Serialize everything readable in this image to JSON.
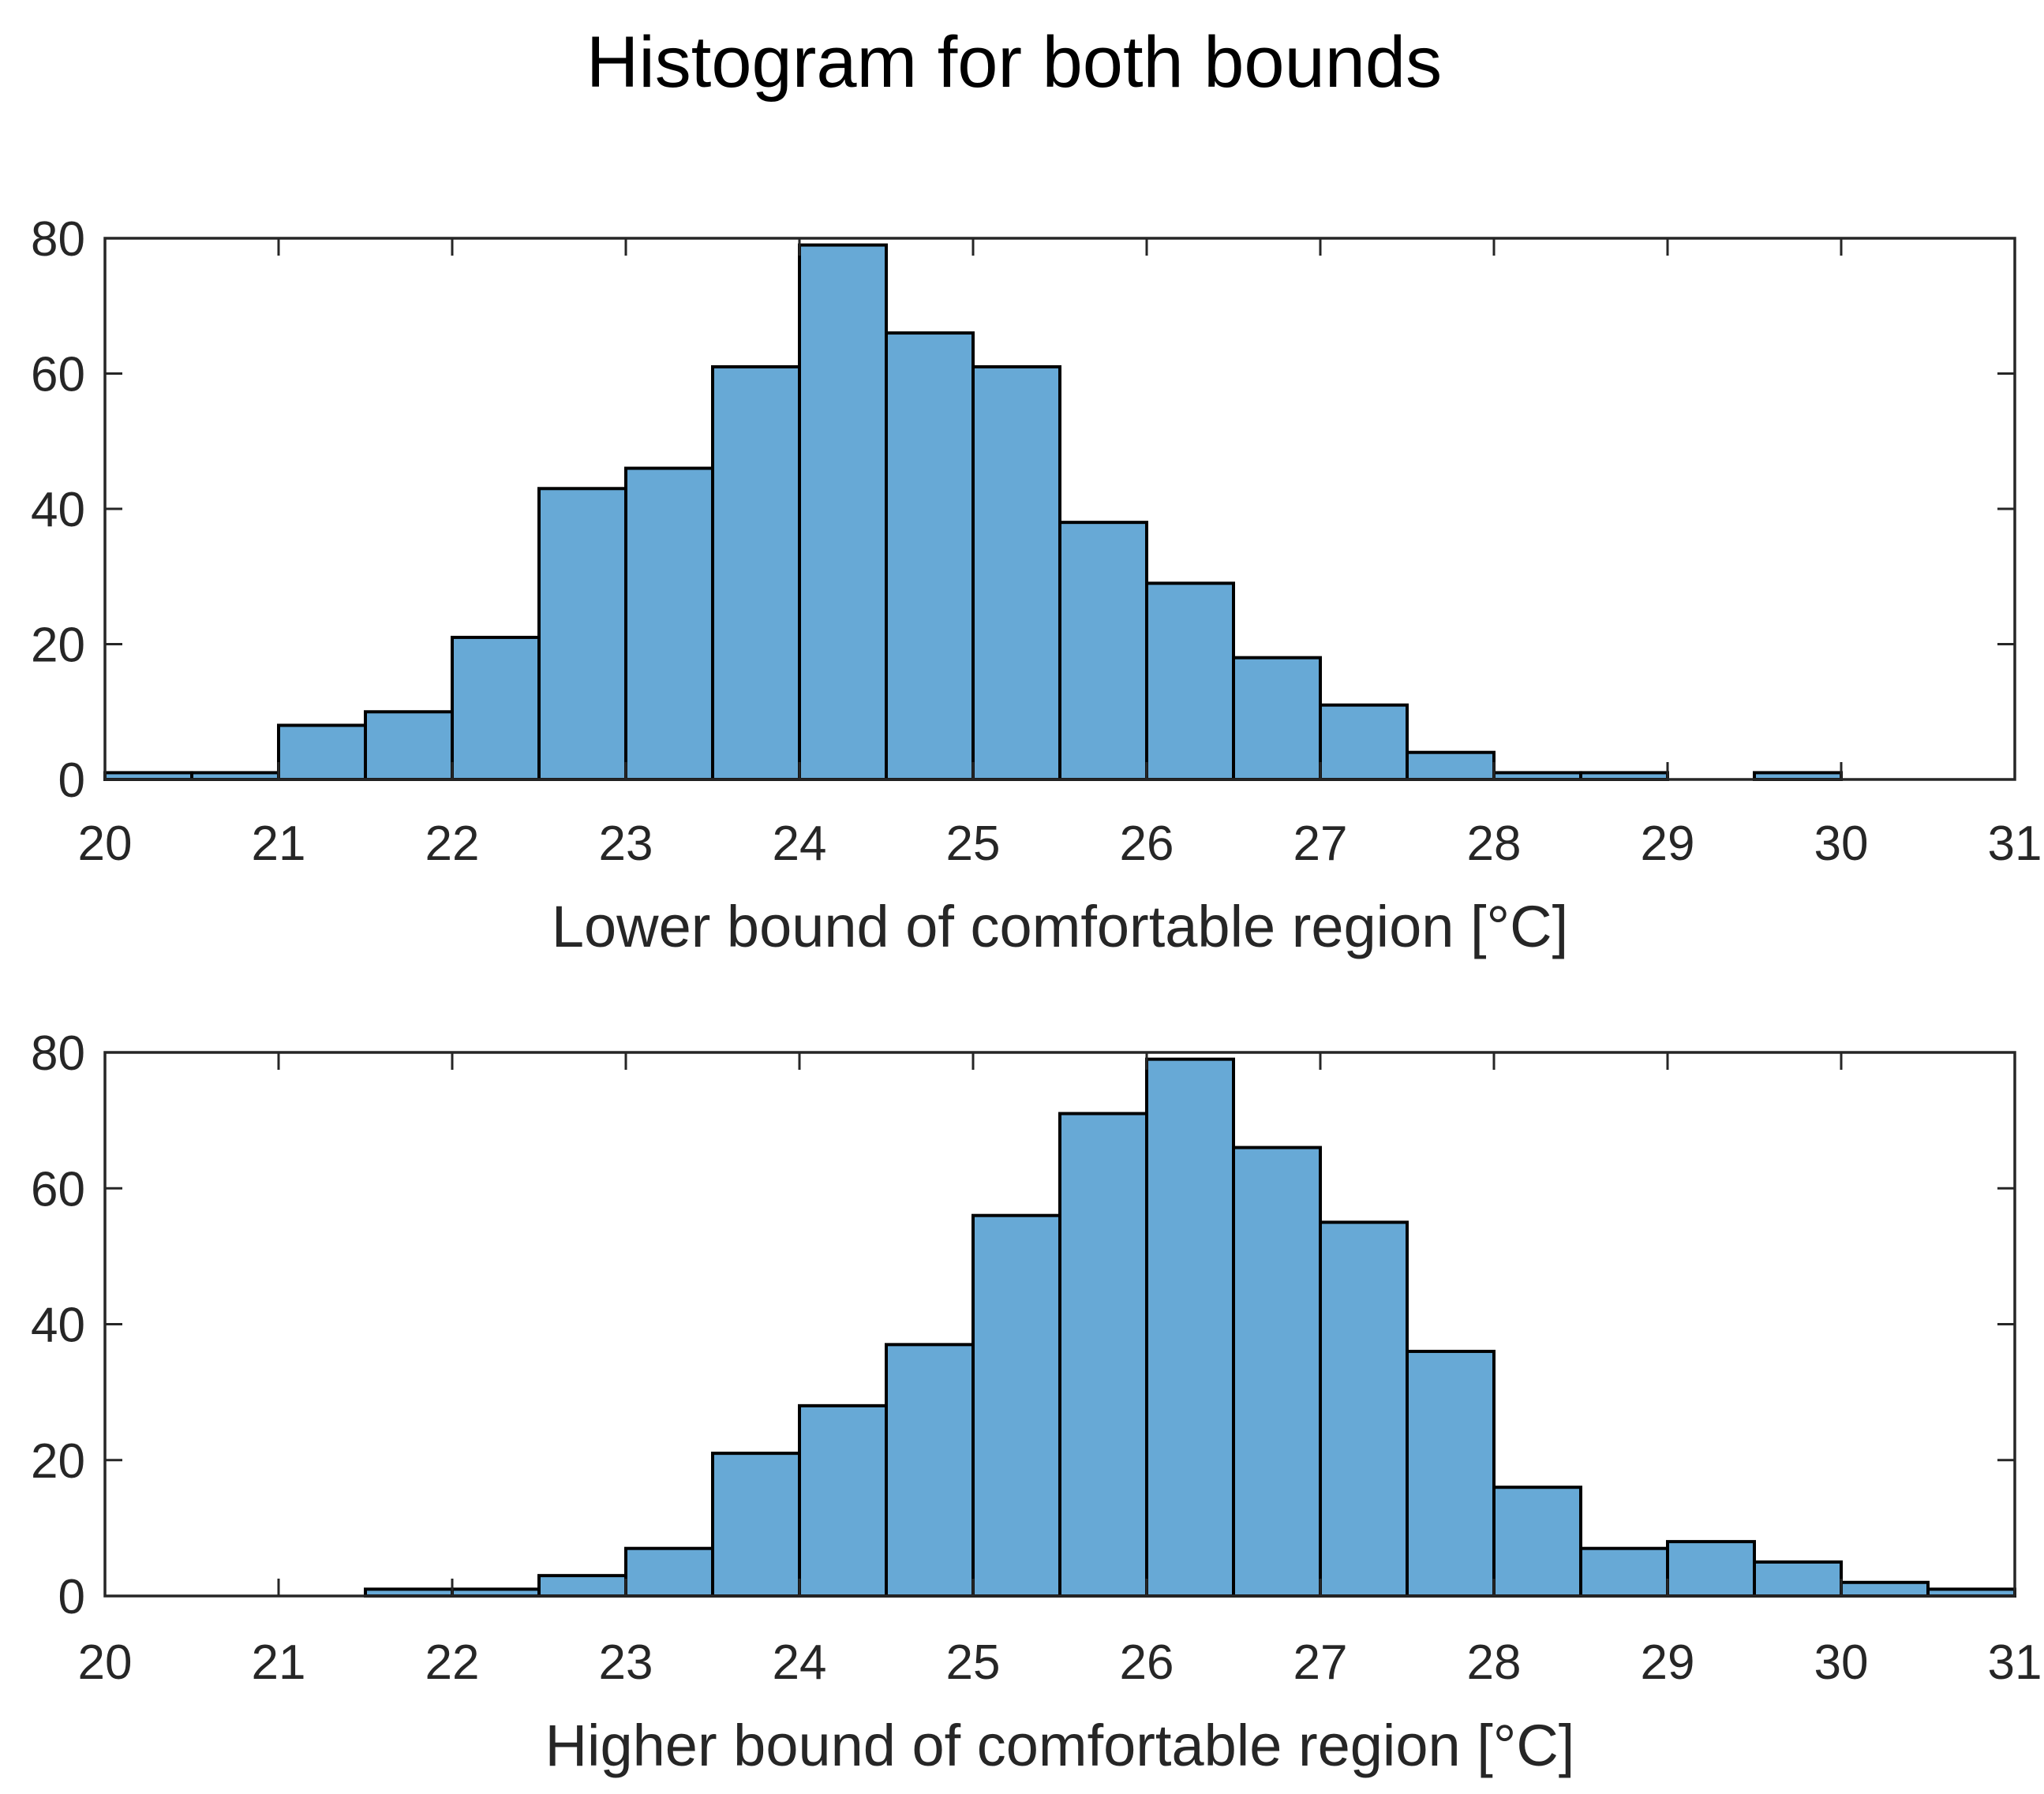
{
  "title": "Histogram for both bounds",
  "colors": {
    "bar_fill": "#67a9d6",
    "bar_edge": "#000000",
    "axis": "#262626",
    "text": "#262626",
    "background": "#ffffff"
  },
  "chart_data": [
    {
      "type": "bar",
      "subtype": "histogram",
      "bin_edges": [
        20,
        20.5,
        21,
        21.5,
        22,
        22.5,
        23,
        23.5,
        24,
        24.5,
        25,
        25.5,
        26,
        26.5,
        27,
        27.5,
        28,
        28.5,
        29,
        29.5,
        30,
        30.5,
        31
      ],
      "values": [
        1,
        1,
        8,
        10,
        21,
        43,
        46,
        61,
        79,
        66,
        61,
        38,
        29,
        18,
        11,
        4,
        1,
        1,
        0,
        1,
        0,
        0
      ],
      "xlabel": "Lower bound of comfortable region [°C]",
      "ylabel": "",
      "xlim": [
        20,
        31
      ],
      "ylim": [
        0,
        80
      ],
      "xticks": [
        "20",
        "21",
        "22",
        "23",
        "24",
        "25",
        "26",
        "27",
        "28",
        "29",
        "30",
        "31"
      ],
      "yticks": [
        "0",
        "20",
        "40",
        "60",
        "80"
      ],
      "grid": false
    },
    {
      "type": "bar",
      "subtype": "histogram",
      "bin_edges": [
        20,
        20.5,
        21,
        21.5,
        22,
        22.5,
        23,
        23.5,
        24,
        24.5,
        25,
        25.5,
        26,
        26.5,
        27,
        27.5,
        28,
        28.5,
        29,
        29.5,
        30,
        30.5,
        31
      ],
      "values": [
        0,
        0,
        0,
        1,
        1,
        3,
        7,
        21,
        28,
        37,
        56,
        71,
        79,
        66,
        55,
        36,
        16,
        7,
        8,
        5,
        2,
        1
      ],
      "xlabel": "Higher bound of comfortable region [°C]",
      "ylabel": "",
      "xlim": [
        20,
        31
      ],
      "ylim": [
        0,
        80
      ],
      "xticks": [
        "20",
        "21",
        "22",
        "23",
        "24",
        "25",
        "26",
        "27",
        "28",
        "29",
        "30",
        "31"
      ],
      "yticks": [
        "0",
        "20",
        "40",
        "60",
        "80"
      ],
      "grid": false
    }
  ]
}
